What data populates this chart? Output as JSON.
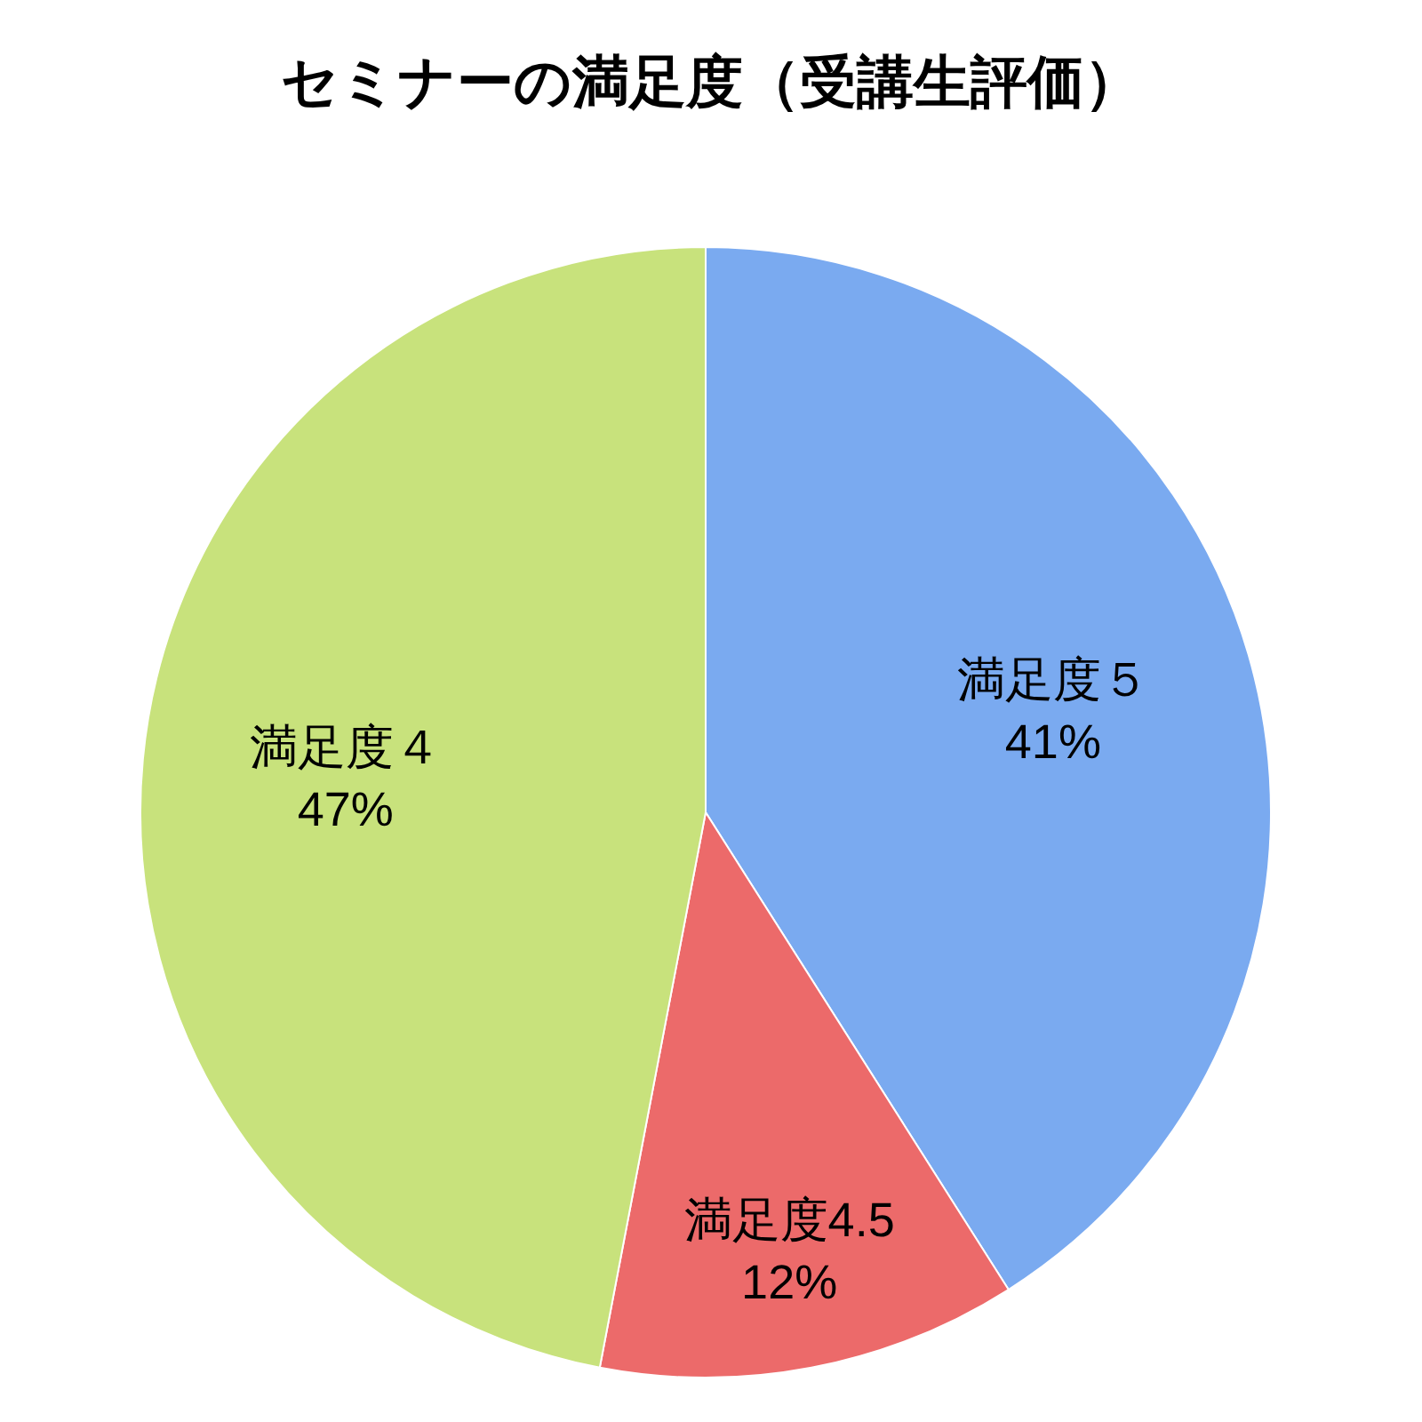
{
  "chart_data": {
    "type": "pie",
    "title": "セミナーの満足度（受講生評価）",
    "categories": [
      "満足度５",
      "満足度4.5",
      "満足度４"
    ],
    "values": [
      41,
      12,
      47
    ],
    "colors": [
      "#7aaaf0",
      "#ec6a6a",
      "#c8e27c"
    ],
    "value_labels": [
      "41%",
      "12%",
      "47%"
    ]
  }
}
